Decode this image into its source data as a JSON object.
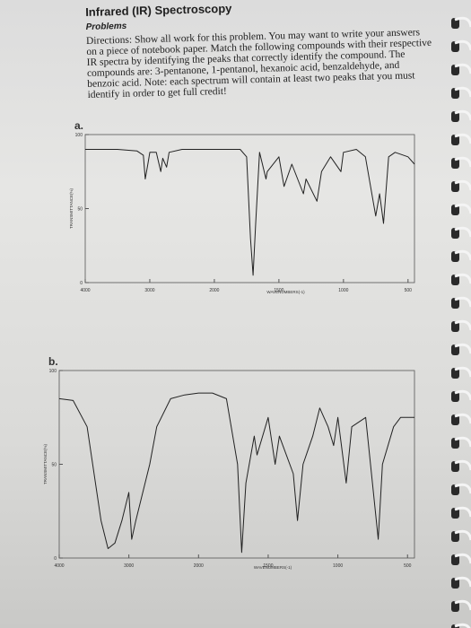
{
  "header": {
    "title": "Infrared (IR) Spectroscopy",
    "subtitle": "Problems",
    "directions_label": "Directions:",
    "directions": "Show all work for this problem. You may want to write your answers on a piece of notebook paper. Match the following compounds with their respective IR spectra by identifying the peaks that correctly identify the compound. The compounds are: 3-pentanone, 1-pentanol, hexanoic acid, benzaldehyde, and benzoic acid. Note: each spectrum will contain at least two peaks that you must identify in order to get full credit!"
  },
  "spectra": [
    {
      "type": "line",
      "label": "a.",
      "x_label": "WAVENUMBERS(-1)",
      "y_label": "TRANSMITTANCE(%)",
      "color": "#222222",
      "xlim": [
        4000,
        450
      ],
      "ylim": [
        0,
        100
      ],
      "xticks": [
        4000,
        3000,
        2000,
        1500,
        1000,
        500
      ],
      "yticks": [
        0,
        50,
        100
      ],
      "x": [
        4000,
        3800,
        3500,
        3200,
        3100,
        3070,
        3030,
        3000,
        2900,
        2830,
        2800,
        2740,
        2700,
        2500,
        2200,
        2000,
        1800,
        1750,
        1720,
        1700,
        1680,
        1650,
        1600,
        1590,
        1500,
        1460,
        1400,
        1310,
        1290,
        1205,
        1170,
        1100,
        1020,
        1000,
        900,
        830,
        750,
        720,
        690,
        650,
        600,
        500,
        450
      ],
      "values": [
        90,
        90,
        90,
        89,
        86,
        70,
        80,
        88,
        88,
        75,
        84,
        78,
        88,
        90,
        90,
        90,
        90,
        85,
        30,
        5,
        40,
        88,
        70,
        75,
        85,
        65,
        80,
        60,
        70,
        55,
        75,
        85,
        75,
        88,
        90,
        85,
        45,
        60,
        40,
        85,
        88,
        85,
        80
      ]
    },
    {
      "type": "line",
      "label": "b.",
      "x_label": "WAVENUMBERS(-1)",
      "y_label": "TRANSMITTANCE(%)",
      "color": "#222222",
      "xlim": [
        4000,
        450
      ],
      "ylim": [
        0,
        100
      ],
      "xticks": [
        4000,
        3000,
        2000,
        1500,
        1000,
        500
      ],
      "yticks": [
        0,
        50,
        100
      ],
      "x": [
        4000,
        3800,
        3600,
        3400,
        3300,
        3200,
        3100,
        3000,
        2960,
        2900,
        2700,
        2600,
        2400,
        2200,
        2000,
        1900,
        1800,
        1720,
        1690,
        1660,
        1600,
        1580,
        1500,
        1450,
        1420,
        1320,
        1290,
        1250,
        1180,
        1130,
        1070,
        1030,
        1000,
        940,
        900,
        800,
        710,
        680,
        600,
        550,
        450
      ],
      "values": [
        85,
        84,
        70,
        20,
        5,
        8,
        20,
        35,
        10,
        20,
        50,
        70,
        85,
        87,
        88,
        88,
        85,
        50,
        3,
        40,
        65,
        55,
        75,
        50,
        65,
        45,
        20,
        50,
        65,
        80,
        70,
        60,
        75,
        40,
        70,
        75,
        10,
        50,
        70,
        75,
        75
      ]
    }
  ]
}
